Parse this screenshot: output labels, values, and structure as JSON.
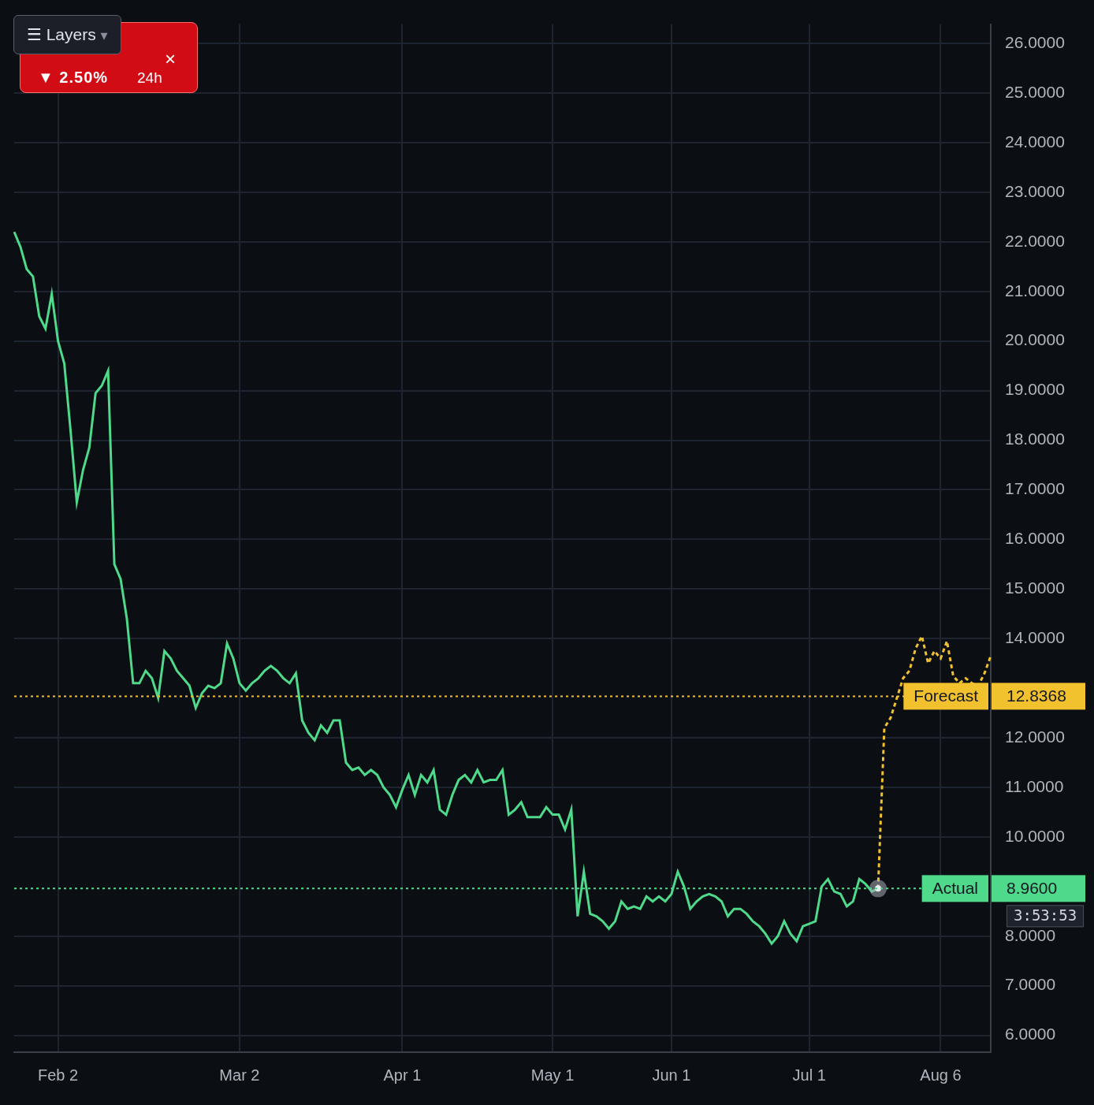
{
  "chart_data": {
    "type": "line",
    "categories": [
      null,
      null,
      null,
      null,
      null,
      null,
      null,
      "Feb 2",
      null,
      null,
      null,
      null,
      null,
      null,
      null,
      null,
      null,
      null,
      null,
      null,
      null,
      null,
      null,
      null,
      null,
      null,
      null,
      null,
      null,
      null,
      null,
      null,
      null,
      null,
      null,
      null,
      "Mar 2",
      null,
      null,
      null,
      null,
      null,
      null,
      null,
      null,
      null,
      null,
      null,
      null,
      null,
      null,
      null,
      null,
      null,
      null,
      null,
      null,
      null,
      null,
      null,
      null,
      null,
      "Apr 1",
      null,
      null,
      null,
      null,
      null,
      null,
      null,
      null,
      null,
      null,
      null,
      null,
      null,
      null,
      null,
      null,
      null,
      null,
      null,
      null,
      null,
      null,
      null,
      "May 1",
      null,
      null,
      null,
      null,
      null,
      null,
      null,
      null,
      null,
      null,
      null,
      null,
      null,
      null,
      null,
      null,
      null,
      null,
      "Jun 1",
      null,
      null,
      null,
      null,
      null,
      null,
      null,
      null,
      null,
      null,
      null,
      null,
      null,
      null,
      null,
      null,
      null,
      null,
      null,
      null,
      null,
      "Jul 1",
      null,
      null,
      null,
      null,
      null,
      null,
      null,
      null,
      null,
      null,
      null,
      null,
      null,
      null,
      null,
      null,
      null,
      null,
      null,
      null,
      "Aug 6",
      null,
      null,
      null,
      null,
      null,
      null,
      null,
      null
    ],
    "series": [
      {
        "name": "Actual",
        "color": "#4fd98a",
        "line_style": "solid",
        "level": 8.96,
        "level_label": "8.9600",
        "countdown": "3:53:53",
        "values": [
          22.2,
          21.9,
          21.45,
          21.3,
          20.5,
          20.25,
          20.95,
          20.0,
          19.55,
          18.2,
          16.75,
          17.4,
          17.85,
          18.95,
          19.1,
          19.4,
          15.5,
          15.2,
          14.4,
          13.1,
          13.1,
          13.35,
          13.2,
          12.8,
          13.75,
          13.6,
          13.35,
          13.2,
          13.05,
          12.6,
          12.9,
          13.05,
          13.0,
          13.1,
          13.9,
          13.6,
          13.1,
          12.95,
          13.1,
          13.2,
          13.35,
          13.45,
          13.35,
          13.2,
          13.1,
          13.3,
          12.35,
          12.1,
          11.95,
          12.25,
          12.1,
          12.35,
          12.35,
          11.5,
          11.35,
          11.4,
          11.25,
          11.35,
          11.25,
          11.0,
          10.85,
          10.6,
          10.95,
          11.25,
          10.85,
          11.25,
          11.1,
          11.35,
          10.55,
          10.45,
          10.85,
          11.15,
          11.25,
          11.1,
          11.35,
          11.1,
          11.15,
          11.15,
          11.35,
          10.45,
          10.55,
          10.7,
          10.4,
          10.4,
          10.4,
          10.6,
          10.45,
          10.45,
          10.15,
          10.55,
          8.4,
          9.3,
          8.45,
          8.4,
          8.3,
          8.15,
          8.3,
          8.7,
          8.55,
          8.6,
          8.55,
          8.8,
          8.7,
          8.8,
          8.7,
          8.85,
          9.3,
          9.0,
          8.55,
          8.7,
          8.8,
          8.85,
          8.8,
          8.7,
          8.4,
          8.55,
          8.55,
          8.45,
          8.3,
          8.2,
          8.05,
          7.85,
          8.0,
          8.3,
          8.05,
          7.9,
          8.2,
          8.25,
          8.3,
          9.0,
          9.15,
          8.9,
          8.85,
          8.6,
          8.7,
          9.15,
          9.05,
          8.9,
          8.96,
          null,
          null,
          null,
          null,
          null,
          null,
          null,
          null,
          null,
          null,
          null,
          null,
          null,
          null,
          null,
          null,
          null,
          null
        ]
      },
      {
        "name": "Forecast",
        "color": "#f2c12e",
        "line_style": "dashed",
        "level": 12.8368,
        "values": [
          null,
          null,
          null,
          null,
          null,
          null,
          null,
          null,
          null,
          null,
          null,
          null,
          null,
          null,
          null,
          null,
          null,
          null,
          null,
          null,
          null,
          null,
          null,
          null,
          null,
          null,
          null,
          null,
          null,
          null,
          null,
          null,
          null,
          null,
          null,
          null,
          null,
          null,
          null,
          null,
          null,
          null,
          null,
          null,
          null,
          null,
          null,
          null,
          null,
          null,
          null,
          null,
          null,
          null,
          null,
          null,
          null,
          null,
          null,
          null,
          null,
          null,
          null,
          null,
          null,
          null,
          null,
          null,
          null,
          null,
          null,
          null,
          null,
          null,
          null,
          null,
          null,
          null,
          null,
          null,
          null,
          null,
          null,
          null,
          null,
          null,
          null,
          null,
          null,
          null,
          null,
          null,
          null,
          null,
          null,
          null,
          null,
          null,
          null,
          null,
          null,
          null,
          null,
          null,
          null,
          null,
          null,
          null,
          null,
          null,
          null,
          null,
          null,
          null,
          null,
          null,
          null,
          null,
          null,
          null,
          null,
          null,
          null,
          null,
          null,
          null,
          null,
          null,
          null,
          null,
          null,
          null,
          null,
          null,
          null,
          null,
          null,
          null,
          8.96,
          12.2,
          12.4,
          12.8,
          13.2,
          13.35,
          13.8,
          14.05,
          13.5,
          13.75,
          13.6,
          13.95,
          13.25,
          13.1,
          13.2,
          13.1,
          13.05,
          13.3,
          13.65
        ]
      }
    ],
    "ylim": [
      5.66,
      26.39
    ],
    "yticks": [
      {
        "value": 6,
        "label": "6.0000"
      },
      {
        "value": 7,
        "label": "7.0000"
      },
      {
        "value": 8,
        "label": "8.0000"
      },
      {
        "value": 10,
        "label": "10.0000"
      },
      {
        "value": 11,
        "label": "11.0000"
      },
      {
        "value": 12,
        "label": "12.0000"
      },
      {
        "value": 14,
        "label": "14.0000"
      },
      {
        "value": 15,
        "label": "15.0000"
      },
      {
        "value": 16,
        "label": "16.0000"
      },
      {
        "value": 17,
        "label": "17.0000"
      },
      {
        "value": 18,
        "label": "18.0000"
      },
      {
        "value": 19,
        "label": "19.0000"
      },
      {
        "value": 20,
        "label": "20.0000"
      },
      {
        "value": 21,
        "label": "21.0000"
      },
      {
        "value": 22,
        "label": "22.0000"
      },
      {
        "value": 23,
        "label": "23.0000"
      },
      {
        "value": 24,
        "label": "24.0000"
      },
      {
        "value": 25,
        "label": "25.0000"
      },
      {
        "value": 26,
        "label": "26.0000"
      }
    ],
    "grid": true
  },
  "overlay": {
    "badge": {
      "change": "▼ 2.50%",
      "period": "24h",
      "close": "×"
    },
    "layers_button": {
      "icon": "☰",
      "label": "Layers",
      "caret": "▾"
    }
  }
}
